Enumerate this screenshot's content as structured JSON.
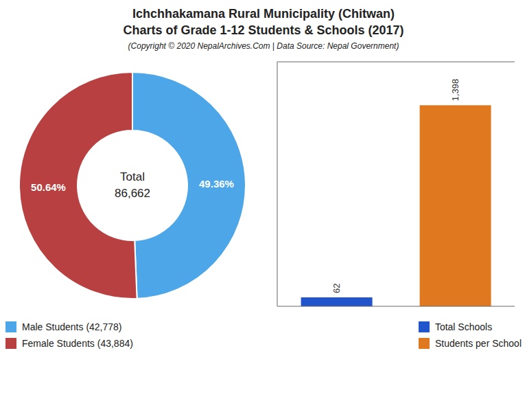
{
  "title": "Ichchhakamana Rural Municipality (Chitwan)\nCharts of Grade 1-12 Students & Schools (2017)",
  "subtitle": "(Copyright © 2020 NepalArchives.Com | Data Source: Nepal Government)",
  "chart_data": [
    {
      "type": "pie",
      "categories": [
        "Male Students (42,778)",
        "Female Students (43,884)"
      ],
      "values": [
        49.36,
        50.64
      ],
      "value_labels": [
        "49.36%",
        "50.64%"
      ],
      "colors": [
        "#4da6e8",
        "#b94040"
      ],
      "data_labels": true,
      "annotations": [
        "Total",
        "86,662"
      ],
      "legend": "lower left"
    },
    {
      "type": "bar",
      "categories": [
        "Total Schools",
        "Students per School"
      ],
      "values": [
        62,
        1398
      ],
      "value_labels": [
        "62",
        "1,398"
      ],
      "colors": [
        "#2255cc",
        "#e07820"
      ],
      "ylim": [
        0,
        1700
      ],
      "data_labels": true,
      "tick_labels": false,
      "legend": "lower right"
    }
  ]
}
